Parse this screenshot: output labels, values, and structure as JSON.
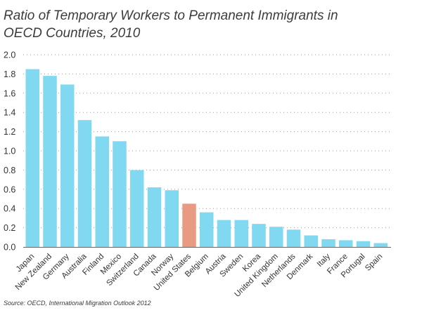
{
  "title_lines": [
    "Ratio of Temporary Workers to Permanent Immigrants in",
    "OECD Countries, 2010"
  ],
  "source": "Source: OECD, International Migration Outlook 2012",
  "colors": {
    "default": "#80d9f0",
    "highlight": "#e89a82",
    "grid": "#9a9a9a",
    "axis": "#666666"
  },
  "chart_data": {
    "type": "bar",
    "title": "Ratio of Temporary Workers to Permanent Immigrants in OECD Countries, 2010",
    "xlabel": "",
    "ylabel": "",
    "ylim": [
      0,
      2.0
    ],
    "yticks": [
      "0.0",
      "0.2",
      "0.4",
      "0.6",
      "0.8",
      "1.0",
      "1.2",
      "1.4",
      "1.6",
      "1.8",
      "2.0"
    ],
    "grid": true,
    "highlight": "United States",
    "categories": [
      "Japan",
      "New Zealand",
      "Germany",
      "Australia",
      "Finland",
      "Mexico",
      "Switzerland",
      "Canada",
      "Norway",
      "United States",
      "Belgium",
      "Austria",
      "Sweden",
      "Korea",
      "United Kingdom",
      "Netherlands",
      "Denmark",
      "Italy",
      "France",
      "Portugal",
      "Spain"
    ],
    "values": [
      1.85,
      1.78,
      1.69,
      1.32,
      1.15,
      1.1,
      0.8,
      0.62,
      0.59,
      0.45,
      0.36,
      0.28,
      0.28,
      0.24,
      0.21,
      0.18,
      0.12,
      0.08,
      0.07,
      0.06,
      0.04
    ]
  }
}
